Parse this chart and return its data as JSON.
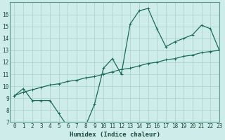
{
  "xlabel": "Humidex (Indice chaleur)",
  "background_color": "#ceecea",
  "grid_color": "#aed4d0",
  "line_color": "#1a6b5a",
  "xlim": [
    -0.5,
    23
  ],
  "ylim": [
    7,
    17
  ],
  "xticks": [
    0,
    1,
    2,
    3,
    4,
    5,
    6,
    7,
    8,
    9,
    10,
    11,
    12,
    13,
    14,
    15,
    16,
    17,
    18,
    19,
    20,
    21,
    22,
    23
  ],
  "yticks": [
    7,
    8,
    9,
    10,
    11,
    12,
    13,
    14,
    15,
    16
  ],
  "curve1_x": [
    0,
    1,
    2,
    3,
    4,
    5,
    6,
    7,
    8,
    9,
    10,
    11,
    12,
    13,
    14,
    15,
    16,
    17,
    18,
    19,
    20,
    21,
    22,
    23
  ],
  "curve1_y": [
    9.2,
    9.8,
    8.8,
    8.8,
    8.8,
    7.7,
    6.6,
    6.7,
    6.7,
    8.5,
    11.5,
    12.3,
    11.0,
    15.2,
    16.3,
    16.5,
    14.8,
    13.3,
    13.7,
    14.0,
    14.3,
    15.1,
    14.8,
    13.0
  ],
  "curve2_x": [
    0,
    1,
    2,
    3,
    4,
    5,
    6,
    7,
    8,
    9,
    10,
    11,
    12,
    13,
    14,
    15,
    16,
    17,
    18,
    19,
    20,
    21,
    22,
    23
  ],
  "curve2_y": [
    9.2,
    9.5,
    9.7,
    9.9,
    10.1,
    10.2,
    10.4,
    10.5,
    10.7,
    10.8,
    11.0,
    11.2,
    11.4,
    11.5,
    11.7,
    11.9,
    12.0,
    12.2,
    12.3,
    12.5,
    12.6,
    12.8,
    12.9,
    13.0
  ],
  "tick_fontsize": 5.5,
  "xlabel_fontsize": 6.5
}
